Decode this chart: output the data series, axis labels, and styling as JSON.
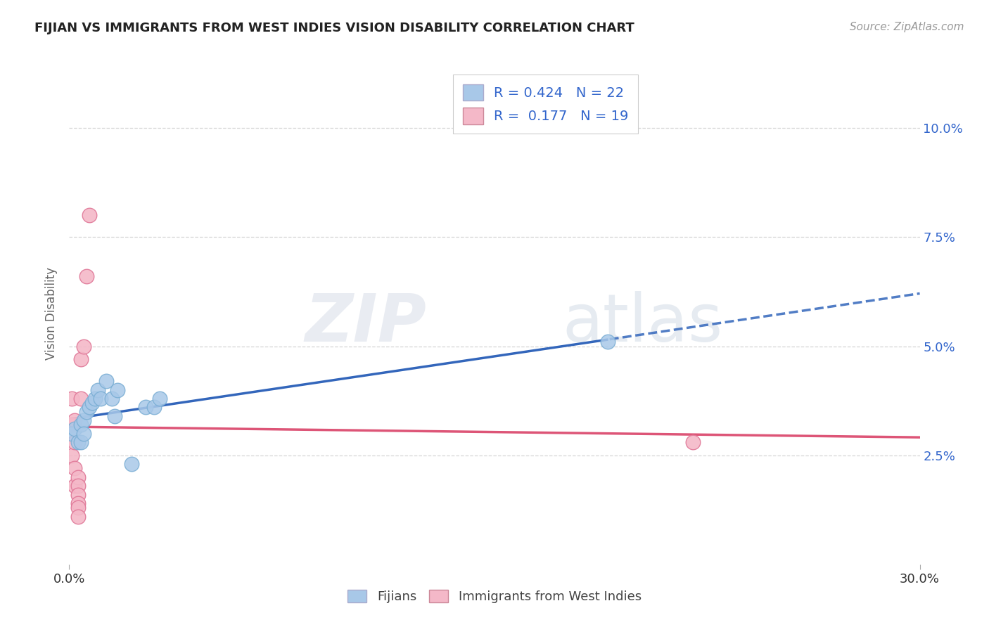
{
  "title": "FIJIAN VS IMMIGRANTS FROM WEST INDIES VISION DISABILITY CORRELATION CHART",
  "source": "Source: ZipAtlas.com",
  "ylabel": "Vision Disability",
  "xlim": [
    0.0,
    0.3
  ],
  "ylim": [
    0.0,
    0.115
  ],
  "background_color": "#ffffff",
  "fijian_color": "#a8c8e8",
  "fijian_edge_color": "#7aaed4",
  "wi_color": "#f4b8c8",
  "wi_edge_color": "#e07898",
  "fijian_R": 0.424,
  "fijian_N": 22,
  "wi_R": 0.177,
  "wi_N": 19,
  "legend_text_color": "#3366cc",
  "fijian_points_x": [
    0.001,
    0.002,
    0.003,
    0.004,
    0.004,
    0.005,
    0.005,
    0.006,
    0.007,
    0.008,
    0.009,
    0.01,
    0.011,
    0.013,
    0.015,
    0.016,
    0.017,
    0.022,
    0.027,
    0.03,
    0.032,
    0.19
  ],
  "fijian_points_y": [
    0.03,
    0.031,
    0.028,
    0.032,
    0.028,
    0.033,
    0.03,
    0.035,
    0.036,
    0.037,
    0.038,
    0.04,
    0.038,
    0.042,
    0.038,
    0.034,
    0.04,
    0.023,
    0.036,
    0.036,
    0.038,
    0.051
  ],
  "wi_points_x": [
    0.001,
    0.001,
    0.001,
    0.002,
    0.002,
    0.002,
    0.002,
    0.003,
    0.003,
    0.003,
    0.003,
    0.003,
    0.003,
    0.004,
    0.004,
    0.005,
    0.006,
    0.007,
    0.22
  ],
  "wi_points_y": [
    0.038,
    0.032,
    0.025,
    0.033,
    0.028,
    0.022,
    0.018,
    0.02,
    0.018,
    0.016,
    0.014,
    0.013,
    0.011,
    0.047,
    0.038,
    0.05,
    0.066,
    0.08,
    0.028
  ],
  "fijian_line_color": "#3366bb",
  "wi_line_color": "#dd5577",
  "grid_color": "#cccccc",
  "watermark_zip": "ZIP",
  "watermark_atlas": "atlas",
  "ytick_labels": [
    "2.5%",
    "5.0%",
    "7.5%",
    "10.0%"
  ],
  "ytick_values": [
    0.025,
    0.05,
    0.075,
    0.1
  ]
}
